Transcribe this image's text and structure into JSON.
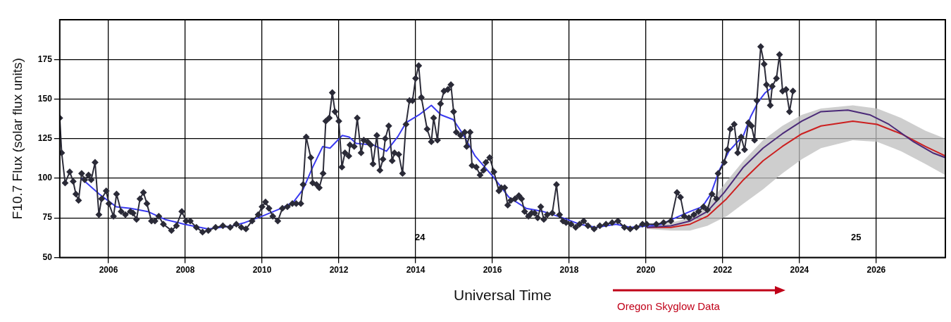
{
  "chart_data": {
    "type": "line",
    "xlabel": "Universal Time",
    "ylabel": "F10.7 Flux (solar flux units)",
    "xlim": [
      2004.73,
      2027.8
    ],
    "xticks": [
      2006,
      2008,
      2010,
      2012,
      2014,
      2016,
      2018,
      2020,
      2022,
      2024,
      2026
    ],
    "ylim": [
      50,
      200
    ],
    "yticks": [
      50,
      75,
      100,
      125,
      150,
      175
    ],
    "grid": true,
    "legend": false,
    "annotations": [
      "24",
      "25",
      "Oregon Skyglow Data"
    ],
    "series": [
      {
        "color": "#2b2b38",
        "marker": "diamond",
        "x": [
          2004.73,
          2004.78,
          2004.87,
          2004.99,
          2005.08,
          2005.15,
          2005.22,
          2005.3,
          2005.38,
          2005.48,
          2005.55,
          2005.65,
          2005.75,
          2005.82,
          2005.94,
          2006.01,
          2006.13,
          2006.21,
          2006.33,
          2006.44,
          2006.57,
          2006.64,
          2006.73,
          2006.82,
          2006.91,
          2007.0,
          2007.12,
          2007.21,
          2007.31,
          2007.43,
          2007.64,
          2007.77,
          2007.91,
          2008.02,
          2008.13,
          2008.29,
          2008.45,
          2008.6,
          2008.79,
          2008.98,
          2009.17,
          2009.33,
          2009.46,
          2009.58,
          2009.74,
          2009.9,
          2010.0,
          2010.09,
          2010.18,
          2010.28,
          2010.41,
          2010.53,
          2010.66,
          2010.79,
          2010.89,
          2011.01,
          2011.07,
          2011.15,
          2011.27,
          2011.32,
          2011.42,
          2011.49,
          2011.59,
          2011.66,
          2011.75,
          2011.83,
          2011.9,
          2012.0,
          2012.08,
          2012.16,
          2012.26,
          2012.29,
          2012.4,
          2012.48,
          2012.58,
          2012.65,
          2012.75,
          2012.83,
          2012.89,
          2012.99,
          2013.07,
          2013.15,
          2013.21,
          2013.3,
          2013.39,
          2013.45,
          2013.56,
          2013.66,
          2013.75,
          2013.84,
          2013.92,
          2014.0,
          2014.08,
          2014.15,
          2014.3,
          2014.41,
          2014.47,
          2014.57,
          2014.65,
          2014.74,
          2014.84,
          2014.92,
          2014.99,
          2015.06,
          2015.17,
          2015.28,
          2015.33,
          2015.42,
          2015.47,
          2015.58,
          2015.68,
          2015.77,
          2015.83,
          2015.93,
          2016.04,
          2016.17,
          2016.23,
          2016.32,
          2016.4,
          2016.48,
          2016.59,
          2016.69,
          2016.76,
          2016.84,
          2016.94,
          2017.02,
          2017.1,
          2017.18,
          2017.26,
          2017.34,
          2017.43,
          2017.56,
          2017.67,
          2017.75,
          2017.84,
          2017.92,
          2018.05,
          2018.17,
          2018.27,
          2018.38,
          2018.49,
          2018.65,
          2018.8,
          2018.96,
          2019.12,
          2019.27,
          2019.44,
          2019.59,
          2019.75,
          2019.91,
          2020.02,
          2020.27,
          2020.46,
          2020.65,
          2020.81,
          2020.9,
          2021.0,
          2021.12,
          2021.25,
          2021.37,
          2021.5,
          2021.6,
          2021.72,
          2021.84,
          2021.88,
          2022.04,
          2022.12,
          2022.2,
          2022.3,
          2022.39,
          2022.48,
          2022.57,
          2022.67,
          2022.75,
          2022.83,
          2022.89,
          2022.99,
          2023.08,
          2023.14,
          2023.24,
          2023.29,
          2023.4,
          2023.48,
          2023.56,
          2023.65,
          2023.74,
          2023.83
        ],
        "values": [
          138,
          116,
          97,
          104,
          98,
          90,
          86,
          103,
          99,
          102,
          99,
          110,
          77,
          87,
          92,
          84,
          76,
          90,
          79,
          77,
          79,
          78,
          74,
          87,
          91,
          84,
          73,
          73,
          76,
          71,
          67,
          70,
          79,
          73,
          73,
          69,
          66,
          67,
          69,
          70,
          69,
          71,
          69,
          68,
          73,
          77,
          82,
          85,
          81,
          76,
          73,
          81,
          82,
          84,
          84,
          84,
          96,
          126,
          113,
          97,
          96,
          94,
          103,
          136,
          138,
          154,
          142,
          136,
          107,
          116,
          114,
          121,
          120,
          138,
          116,
          124,
          123,
          121,
          109,
          127,
          105,
          112,
          125,
          133,
          111,
          116,
          115,
          103,
          134,
          149,
          149,
          163,
          171,
          151,
          131,
          123,
          138,
          124,
          147,
          155,
          156,
          159,
          142,
          129,
          127,
          129,
          120,
          129,
          108,
          107,
          102,
          105,
          110,
          113,
          104,
          92,
          94,
          94,
          83,
          86,
          87,
          89,
          87,
          79,
          76,
          78,
          78,
          75,
          82,
          74,
          77,
          78,
          96,
          77,
          73,
          72,
          71,
          69,
          71,
          73,
          70,
          68,
          70,
          71,
          72,
          73,
          69,
          68,
          69,
          71,
          71,
          71,
          72,
          73,
          91,
          88,
          76,
          75,
          77,
          79,
          82,
          80,
          90,
          87,
          103,
          110,
          118,
          131,
          134,
          116,
          126,
          118,
          135,
          133,
          124,
          149,
          183,
          172,
          159,
          146,
          158,
          163,
          178,
          155,
          156,
          142,
          155
        ]
      },
      {
        "color": "#3a3af0",
        "marker": "none",
        "x": [
          2005.29,
          2005.76,
          2006.2,
          2006.58,
          2007.02,
          2007.47,
          2007.97,
          2008.6,
          2009.24,
          2009.55,
          2010.0,
          2010.5,
          2010.82,
          2011.07,
          2011.32,
          2011.58,
          2011.77,
          2012.09,
          2012.27,
          2012.45,
          2012.89,
          2013.24,
          2013.53,
          2013.75,
          2014.09,
          2014.41,
          2014.66,
          2014.98,
          2015.23,
          2015.55,
          2016.05,
          2016.43,
          2016.88,
          2017.32,
          2017.83,
          2018.27,
          2018.71,
          2019.22,
          2019.59,
          2020.1,
          2020.4,
          2020.77,
          2021.15,
          2021.47,
          2021.69,
          2021.91,
          2022.16,
          2022.54,
          2022.73,
          2022.92,
          2023.11,
          2023.33
        ],
        "values": [
          100,
          90,
          82,
          81,
          79,
          74,
          71,
          68,
          70,
          72,
          76,
          81,
          85,
          93,
          107,
          120,
          119,
          127,
          126,
          122,
          121,
          117,
          126,
          135,
          140,
          146,
          140,
          137,
          128,
          114,
          100,
          88,
          81,
          79,
          75,
          71,
          69,
          71,
          69,
          70,
          71,
          75,
          79,
          82,
          90,
          105,
          117,
          127,
          139,
          148,
          154,
          158
        ]
      },
      {
        "color": "#4b2a78",
        "marker": "none",
        "x": [
          2020.02,
          2020.65,
          2021.15,
          2021.6,
          2022.04,
          2022.54,
          2023.05,
          2023.55,
          2024.06,
          2024.56,
          2025.26,
          2025.83,
          2026.33,
          2026.97,
          2027.47,
          2027.8
        ],
        "values": [
          69,
          70,
          73,
          79,
          91,
          107,
          119,
          128,
          136,
          142,
          143,
          140,
          134,
          123,
          116,
          113
        ]
      },
      {
        "color": "#cc2020",
        "marker": "none",
        "x": [
          2020.02,
          2020.65,
          2021.15,
          2021.6,
          2022.1,
          2022.54,
          2023.05,
          2023.55,
          2024.06,
          2024.56,
          2025.39,
          2026.02,
          2026.65,
          2027.28,
          2027.8
        ],
        "values": [
          69,
          69,
          71,
          76,
          87,
          99,
          111,
          120,
          128,
          133,
          136,
          134,
          128,
          120,
          114
        ],
        "lower": [
          68,
          67,
          67,
          70,
          76,
          84,
          93,
          103,
          112,
          119,
          124,
          123,
          117,
          109,
          102
        ],
        "upper": [
          70,
          72,
          75,
          83,
          98,
          111,
          124,
          133,
          140,
          144,
          146,
          144,
          138,
          130,
          125
        ]
      }
    ]
  }
}
